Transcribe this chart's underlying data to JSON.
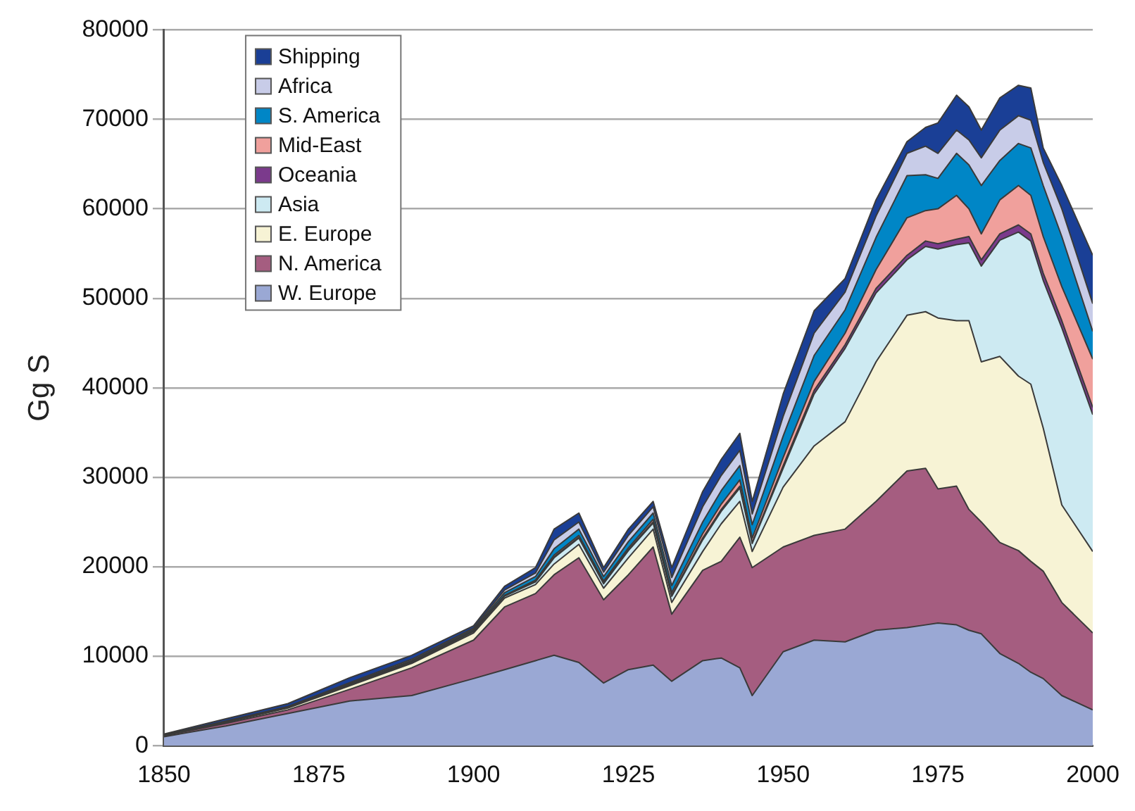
{
  "chart_data": {
    "type": "area",
    "stacked": true,
    "ylabel": "Gg S",
    "x": [
      1850,
      1860,
      1870,
      1880,
      1890,
      1900,
      1905,
      1910,
      1913,
      1917,
      1921,
      1925,
      1929,
      1932,
      1937,
      1940,
      1943,
      1945,
      1950,
      1955,
      1960,
      1965,
      1970,
      1973,
      1975,
      1978,
      1980,
      1982,
      1985,
      1988,
      1990,
      1992,
      1995,
      2000
    ],
    "xlim": [
      1850,
      2000
    ],
    "xticks": [
      1850,
      1875,
      1900,
      1925,
      1950,
      1975,
      2000
    ],
    "ylim": [
      0,
      80000
    ],
    "yticks": [
      0,
      10000,
      20000,
      30000,
      40000,
      50000,
      60000,
      70000,
      80000
    ],
    "grid": "y",
    "legend": "top left",
    "series": [
      {
        "name": "W. Europe",
        "color": "#9aa8d4",
        "values": [
          1000,
          2200,
          3600,
          5000,
          5600,
          7500,
          8500,
          9500,
          10100,
          9300,
          7000,
          8500,
          9000,
          7200,
          9500,
          9800,
          8700,
          5600,
          10500,
          11800,
          11600,
          12900,
          13200,
          13500,
          13700,
          13500,
          12900,
          12500,
          10300,
          9200,
          8200,
          7500,
          5600,
          4000
        ]
      },
      {
        "name": "N. America",
        "color": "#a55d80",
        "values": [
          100,
          300,
          400,
          1300,
          3100,
          4300,
          7000,
          7500,
          9000,
          11700,
          9300,
          10600,
          13200,
          7500,
          10100,
          10800,
          14600,
          14300,
          11700,
          11700,
          12600,
          14400,
          17500,
          17500,
          15000,
          15500,
          13500,
          12500,
          12400,
          12600,
          12400,
          12000,
          10400,
          8600
        ]
      },
      {
        "name": "E. Europe",
        "color": "#f7f3d5",
        "values": [
          50,
          100,
          200,
          400,
          500,
          800,
          1000,
          1000,
          1200,
          1500,
          1300,
          1900,
          2000,
          1300,
          2100,
          4200,
          4000,
          1800,
          6700,
          10000,
          12000,
          15600,
          17400,
          17500,
          19100,
          18500,
          21100,
          17900,
          20800,
          19500,
          19800,
          16000,
          10900,
          9100
        ]
      },
      {
        "name": "Asia",
        "color": "#cdeaf2",
        "values": [
          20,
          50,
          50,
          100,
          100,
          150,
          200,
          300,
          700,
          700,
          500,
          800,
          700,
          700,
          1300,
          1400,
          1500,
          900,
          2100,
          5800,
          8200,
          7700,
          6200,
          7300,
          7700,
          8500,
          8700,
          10700,
          13000,
          16100,
          16000,
          16500,
          19800,
          15300
        ]
      },
      {
        "name": "Oceania",
        "color": "#7b3a8c",
        "values": [
          5,
          10,
          20,
          30,
          50,
          50,
          60,
          100,
          100,
          100,
          100,
          100,
          100,
          100,
          200,
          200,
          200,
          100,
          300,
          400,
          400,
          500,
          500,
          600,
          600,
          600,
          700,
          700,
          700,
          800,
          800,
          800,
          800,
          800
        ]
      },
      {
        "name": "Mid-East",
        "color": "#f0a09c",
        "values": [
          5,
          10,
          10,
          20,
          30,
          50,
          40,
          100,
          200,
          200,
          200,
          200,
          300,
          300,
          500,
          600,
          700,
          500,
          900,
          1000,
          1300,
          2100,
          4200,
          3400,
          3900,
          4900,
          3100,
          2900,
          3800,
          4400,
          4300,
          4100,
          3800,
          5400
        ]
      },
      {
        "name": "S. America",
        "color": "#0086c6",
        "values": [
          10,
          30,
          40,
          100,
          120,
          150,
          300,
          400,
          700,
          700,
          500,
          700,
          700,
          800,
          1300,
          1500,
          1600,
          1500,
          2400,
          2900,
          2600,
          3600,
          4700,
          4000,
          3400,
          4700,
          4900,
          5400,
          4400,
          4700,
          5300,
          5700,
          5600,
          3100
        ]
      },
      {
        "name": "Africa",
        "color": "#c8cce8",
        "values": [
          10,
          50,
          50,
          100,
          150,
          150,
          300,
          400,
          1000,
          800,
          500,
          700,
          700,
          900,
          1700,
          1700,
          1700,
          1200,
          2200,
          2500,
          2000,
          2400,
          2500,
          3200,
          2800,
          2600,
          2800,
          3100,
          3400,
          3100,
          3100,
          2600,
          3100,
          3100
        ]
      },
      {
        "name": "Shipping",
        "color": "#1a3f96",
        "values": [
          100,
          250,
          330,
          550,
          450,
          250,
          400,
          600,
          1200,
          1000,
          500,
          700,
          600,
          1100,
          1700,
          1800,
          1900,
          1400,
          2500,
          2500,
          1500,
          1800,
          1300,
          2100,
          3400,
          3900,
          3700,
          3100,
          3600,
          3400,
          3600,
          1600,
          2600,
          5400
        ]
      }
    ]
  }
}
